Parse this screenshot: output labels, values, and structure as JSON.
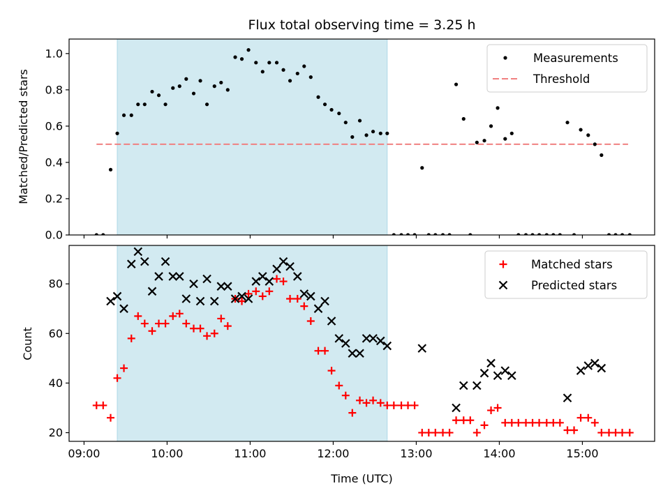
{
  "chart_data": [
    {
      "type": "scatter",
      "title": "Flux total observing time = 3.25 h",
      "xlabel": "",
      "ylabel": "Matched/Predicted stars",
      "xlim": [
        8.82,
        15.87
      ],
      "ylim": [
        0,
        1.08
      ],
      "yticks": [
        0.0,
        0.2,
        0.4,
        0.6,
        0.8,
        1.0
      ],
      "ytick_labels": [
        "0.0",
        "0.2",
        "0.4",
        "0.6",
        "0.8",
        "1.0"
      ],
      "shaded_span": {
        "from": 9.4,
        "to": 12.65,
        "color": "#add8e6"
      },
      "threshold": {
        "y": 0.5,
        "from": 9.15,
        "to": 15.55,
        "color": "#f08080"
      },
      "legend": {
        "position": "upper right",
        "entries": [
          {
            "name": "Measurements",
            "marker": "dot",
            "color": "#000000"
          },
          {
            "name": "Threshold",
            "marker": "dashed-line",
            "color": "#f08080"
          }
        ]
      },
      "series": [
        {
          "name": "Measurements",
          "color": "#000000",
          "x": [
            9.15,
            9.23,
            9.32,
            9.4,
            9.48,
            9.57,
            9.65,
            9.73,
            9.82,
            9.9,
            9.98,
            10.07,
            10.15,
            10.23,
            10.32,
            10.4,
            10.48,
            10.57,
            10.65,
            10.73,
            10.82,
            10.9,
            10.98,
            11.07,
            11.15,
            11.23,
            11.32,
            11.4,
            11.48,
            11.57,
            11.65,
            11.73,
            11.82,
            11.9,
            11.98,
            12.07,
            12.15,
            12.23,
            12.32,
            12.4,
            12.48,
            12.57,
            12.65,
            12.73,
            12.82,
            12.9,
            12.98,
            13.07,
            13.15,
            13.23,
            13.32,
            13.4,
            13.48,
            13.57,
            13.65,
            13.73,
            13.82,
            13.9,
            13.98,
            14.07,
            14.15,
            14.23,
            14.32,
            14.4,
            14.48,
            14.57,
            14.65,
            14.73,
            14.82,
            14.9,
            14.98,
            15.07,
            15.15,
            15.23,
            15.32,
            15.4,
            15.48,
            15.57
          ],
          "y": [
            0,
            0,
            0.36,
            0.56,
            0.66,
            0.66,
            0.72,
            0.72,
            0.79,
            0.77,
            0.72,
            0.81,
            0.82,
            0.86,
            0.78,
            0.85,
            0.72,
            0.82,
            0.84,
            0.8,
            0.98,
            0.97,
            1.02,
            0.95,
            0.9,
            0.95,
            0.95,
            0.91,
            0.85,
            0.89,
            0.93,
            0.87,
            0.76,
            0.72,
            0.69,
            0.67,
            0.62,
            0.54,
            0.63,
            0.55,
            0.57,
            0.56,
            0.56,
            0,
            0,
            0,
            0,
            0.37,
            0,
            0,
            0,
            0,
            0.83,
            0.64,
            0,
            0.51,
            0.52,
            0.6,
            0.7,
            0.53,
            0.56,
            0,
            0,
            0,
            0,
            0,
            0,
            0,
            0.62,
            0,
            0.58,
            0.55,
            0.5,
            0.44,
            0,
            0,
            0,
            0
          ]
        }
      ]
    },
    {
      "type": "scatter",
      "title": "",
      "xlabel": "Time (UTC)",
      "ylabel": "Count",
      "xlim": [
        8.82,
        15.87
      ],
      "ylim": [
        16.5,
        95.5
      ],
      "xticks": [
        9,
        10,
        11,
        12,
        13,
        14,
        15
      ],
      "xtick_labels": [
        "09:00",
        "10:00",
        "11:00",
        "12:00",
        "13:00",
        "14:00",
        "15:00"
      ],
      "yticks": [
        20,
        40,
        60,
        80
      ],
      "ytick_labels": [
        "20",
        "40",
        "60",
        "80"
      ],
      "shaded_span": {
        "from": 9.4,
        "to": 12.65,
        "color": "#add8e6"
      },
      "legend": {
        "position": "upper right",
        "entries": [
          {
            "name": "Matched stars",
            "marker": "plus",
            "color": "#ff0000"
          },
          {
            "name": "Predicted stars",
            "marker": "x",
            "color": "#000000"
          }
        ]
      },
      "series": [
        {
          "name": "Matched stars",
          "marker": "plus",
          "color": "#ff0000",
          "x": [
            9.15,
            9.23,
            9.32,
            9.4,
            9.48,
            9.57,
            9.65,
            9.73,
            9.82,
            9.9,
            9.98,
            10.07,
            10.15,
            10.23,
            10.32,
            10.4,
            10.48,
            10.57,
            10.65,
            10.73,
            10.82,
            10.9,
            10.98,
            11.07,
            11.15,
            11.23,
            11.32,
            11.4,
            11.48,
            11.57,
            11.65,
            11.73,
            11.82,
            11.9,
            11.98,
            12.07,
            12.15,
            12.23,
            12.32,
            12.4,
            12.48,
            12.57,
            12.65,
            12.73,
            12.82,
            12.9,
            12.98,
            13.07,
            13.15,
            13.23,
            13.32,
            13.4,
            13.48,
            13.57,
            13.65,
            13.73,
            13.82,
            13.9,
            13.98,
            14.07,
            14.15,
            14.23,
            14.32,
            14.4,
            14.48,
            14.57,
            14.65,
            14.73,
            14.82,
            14.9,
            14.98,
            15.07,
            15.15,
            15.23,
            15.32,
            15.4,
            15.48,
            15.57
          ],
          "y": [
            31,
            31,
            26,
            42,
            46,
            58,
            67,
            64,
            61,
            64,
            64,
            67,
            68,
            64,
            62,
            62,
            59,
            60,
            66,
            63,
            74,
            73,
            76,
            77,
            75,
            77,
            82,
            81,
            74,
            74,
            71,
            65,
            53,
            53,
            45,
            39,
            35,
            28,
            33,
            32,
            33,
            32,
            31,
            31,
            31,
            31,
            31,
            20,
            20,
            20,
            20,
            20,
            25,
            25,
            25,
            20,
            23,
            29,
            30,
            24,
            24,
            24,
            24,
            24,
            24,
            24,
            24,
            24,
            21,
            21,
            26,
            26,
            24,
            20,
            20,
            20,
            20,
            20
          ]
        },
        {
          "name": "Predicted stars",
          "marker": "x",
          "color": "#000000",
          "x": [
            9.32,
            9.4,
            9.48,
            9.57,
            9.65,
            9.73,
            9.82,
            9.9,
            9.98,
            10.07,
            10.15,
            10.23,
            10.32,
            10.4,
            10.48,
            10.57,
            10.65,
            10.73,
            10.82,
            10.9,
            10.98,
            11.07,
            11.15,
            11.23,
            11.32,
            11.4,
            11.48,
            11.57,
            11.65,
            11.73,
            11.82,
            11.9,
            11.98,
            12.07,
            12.15,
            12.23,
            12.32,
            12.4,
            12.48,
            12.57,
            12.65,
            13.07,
            13.48,
            13.57,
            13.73,
            13.82,
            13.9,
            13.98,
            14.07,
            14.15,
            14.82,
            14.98,
            15.07,
            15.15,
            15.23
          ],
          "y": [
            73,
            75,
            70,
            88,
            93,
            89,
            77,
            83,
            89,
            83,
            83,
            74,
            80,
            73,
            82,
            73,
            79,
            79,
            74,
            75,
            74,
            81,
            83,
            81,
            86,
            89,
            87,
            83,
            76,
            75,
            70,
            73,
            65,
            58,
            56,
            52,
            52,
            58,
            58,
            57,
            55,
            54,
            30,
            39,
            39,
            44,
            48,
            43,
            45,
            43,
            34,
            45,
            47,
            48,
            46
          ]
        }
      ]
    }
  ]
}
